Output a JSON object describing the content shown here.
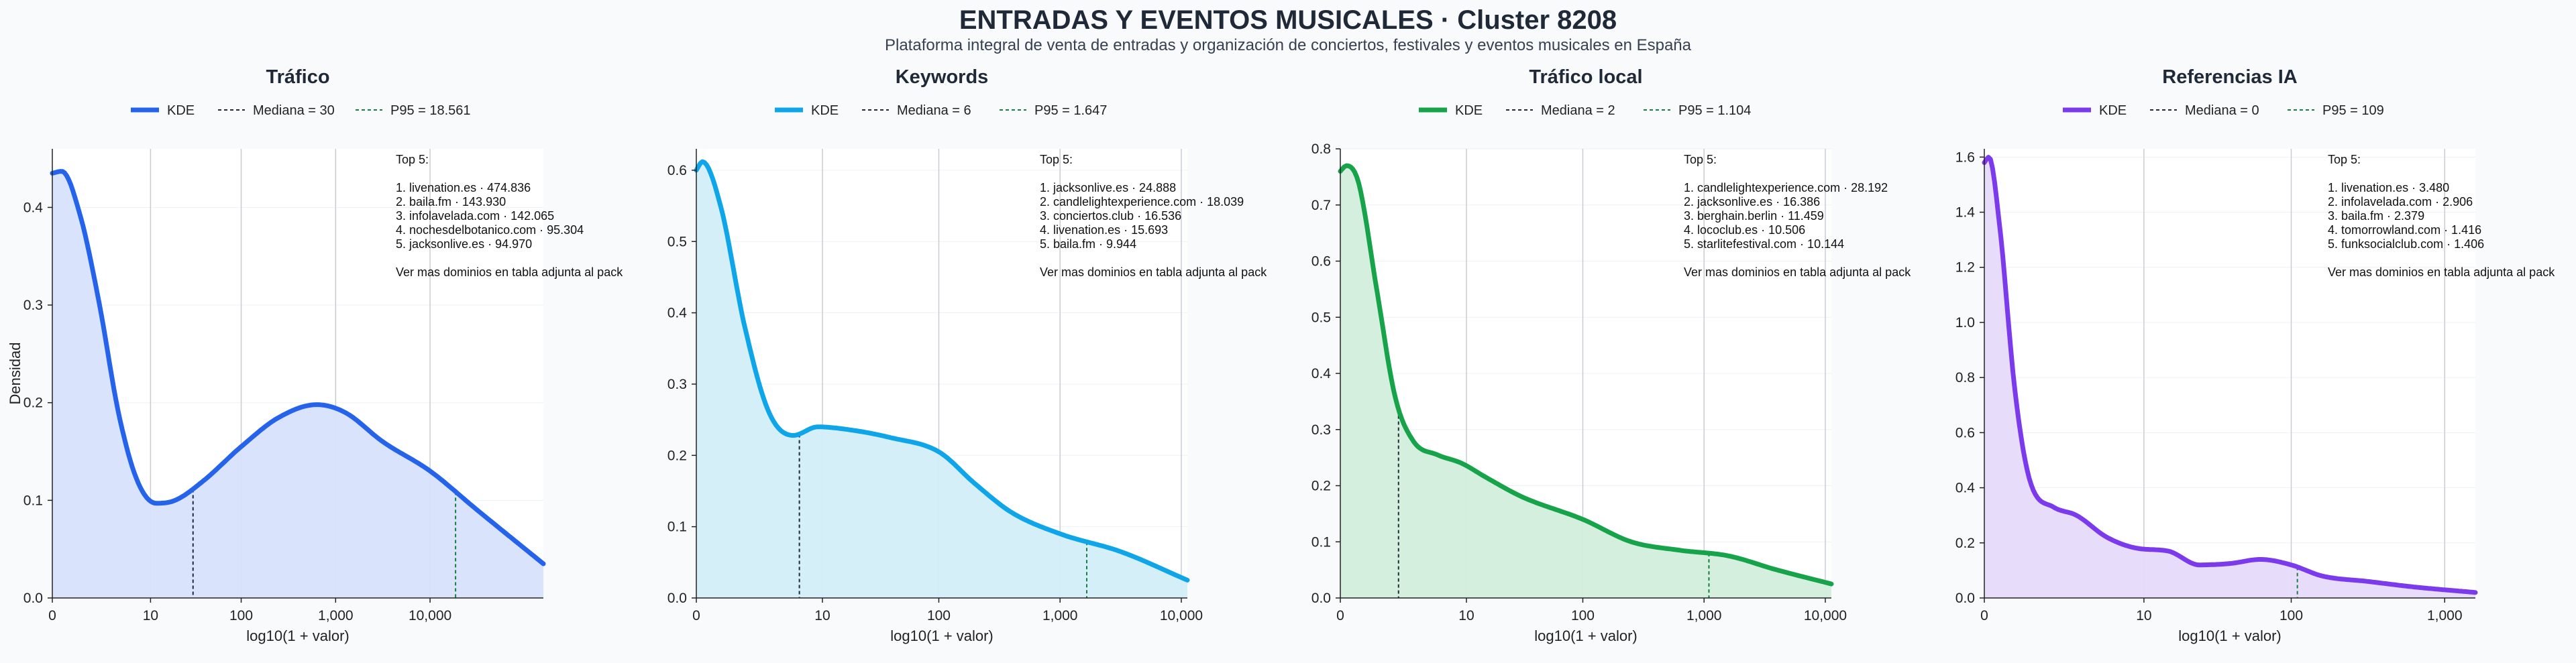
{
  "title": "ENTRADAS Y EVENTOS MUSICALES · Cluster 8208",
  "subtitle": "Plataforma integral de venta de entradas y organización de conciertos, festivales y eventos musicales en España",
  "chart_data": [
    {
      "type": "area",
      "title": "Tráfico",
      "xlabel": "log10(1 + valor)",
      "ylabel": "Densidad",
      "color": "#2563eb",
      "fill": "#d7e2fb",
      "xlim": [
        0,
        5.2
      ],
      "ylim": [
        0,
        0.46
      ],
      "x_ticks": [
        {
          "v": 0,
          "label": "0"
        },
        {
          "v": 1.04,
          "label": "10"
        },
        {
          "v": 2.0,
          "label": "100"
        },
        {
          "v": 3.0,
          "label": "1,000"
        },
        {
          "v": 4.0,
          "label": "10,000"
        }
      ],
      "y_ticks": [
        {
          "v": 0,
          "label": "0.0"
        },
        {
          "v": 0.1,
          "label": "0.1"
        },
        {
          "v": 0.2,
          "label": "0.2"
        },
        {
          "v": 0.3,
          "label": "0.3"
        },
        {
          "v": 0.4,
          "label": "0.4"
        }
      ],
      "x": [
        0,
        0.1,
        0.3,
        0.5,
        0.7,
        0.9,
        1.1,
        1.3,
        1.6,
        2.0,
        2.4,
        2.8,
        3.1,
        3.5,
        4.0,
        4.5,
        5.2
      ],
      "y": [
        0.435,
        0.437,
        0.39,
        0.3,
        0.19,
        0.12,
        0.097,
        0.1,
        0.12,
        0.155,
        0.185,
        0.198,
        0.19,
        0.16,
        0.13,
        0.09,
        0.035
      ],
      "median": {
        "x": 1.49,
        "label": "Mediana = 30"
      },
      "p95": {
        "x": 4.27,
        "label": "P95 = 18.561"
      },
      "series_label": "KDE",
      "top5_title": "Top 5:",
      "top5": [
        "1. livenation.es · 474.836",
        "2. baila.fm · 143.930",
        "3. infolavelada.com · 142.065",
        "4. nochesdelbotanico.com · 95.304",
        "5. jacksonlive.es · 94.970"
      ],
      "top5_note": "Ver mas dominios en tabla adjunta al pack"
    },
    {
      "type": "area",
      "title": "Keywords",
      "xlabel": "log10(1 + valor)",
      "ylabel": "",
      "color": "#0ea5e9",
      "fill": "#d3eef9",
      "xlim": [
        0,
        4.05
      ],
      "ylim": [
        0,
        0.63
      ],
      "x_ticks": [
        {
          "v": 0,
          "label": "0"
        },
        {
          "v": 1.04,
          "label": "10"
        },
        {
          "v": 2.0,
          "label": "100"
        },
        {
          "v": 3.0,
          "label": "1,000"
        },
        {
          "v": 4.0,
          "label": "10,000"
        }
      ],
      "y_ticks": [
        {
          "v": 0,
          "label": "0.0"
        },
        {
          "v": 0.1,
          "label": "0.1"
        },
        {
          "v": 0.2,
          "label": "0.2"
        },
        {
          "v": 0.3,
          "label": "0.3"
        },
        {
          "v": 0.4,
          "label": "0.4"
        },
        {
          "v": 0.5,
          "label": "0.5"
        },
        {
          "v": 0.6,
          "label": "0.6"
        }
      ],
      "x": [
        0,
        0.05,
        0.2,
        0.4,
        0.6,
        0.8,
        1.0,
        1.3,
        1.6,
        2.0,
        2.3,
        2.6,
        3.0,
        3.5,
        4.05
      ],
      "y": [
        0.6,
        0.612,
        0.55,
        0.38,
        0.26,
        0.228,
        0.24,
        0.235,
        0.225,
        0.205,
        0.16,
        0.12,
        0.09,
        0.065,
        0.025
      ],
      "median": {
        "x": 0.85,
        "label": "Mediana = 6"
      },
      "p95": {
        "x": 3.22,
        "label": "P95 = 1.647"
      },
      "series_label": "KDE",
      "top5_title": "Top 5:",
      "top5": [
        "1. jacksonlive.es · 24.888",
        "2. candlelightexperience.com · 18.039",
        "3. conciertos.club · 16.536",
        "4. livenation.es · 15.693",
        "5. baila.fm · 9.944"
      ],
      "top5_note": "Ver mas dominios en tabla adjunta al pack"
    },
    {
      "type": "area",
      "title": "Tráfico local",
      "xlabel": "log10(1 + valor)",
      "ylabel": "",
      "color": "#16a34a",
      "fill": "#d3eedc",
      "xlim": [
        0,
        4.05
      ],
      "ylim": [
        0,
        0.8
      ],
      "x_ticks": [
        {
          "v": 0,
          "label": "0"
        },
        {
          "v": 1.04,
          "label": "10"
        },
        {
          "v": 2.0,
          "label": "100"
        },
        {
          "v": 3.0,
          "label": "1,000"
        },
        {
          "v": 4.0,
          "label": "10,000"
        }
      ],
      "y_ticks": [
        {
          "v": 0,
          "label": "0.0"
        },
        {
          "v": 0.1,
          "label": "0.1"
        },
        {
          "v": 0.2,
          "label": "0.2"
        },
        {
          "v": 0.3,
          "label": "0.3"
        },
        {
          "v": 0.4,
          "label": "0.4"
        },
        {
          "v": 0.5,
          "label": "0.5"
        },
        {
          "v": 0.6,
          "label": "0.6"
        },
        {
          "v": 0.7,
          "label": "0.7"
        },
        {
          "v": 0.8,
          "label": "0.8"
        }
      ],
      "x": [
        0,
        0.05,
        0.15,
        0.3,
        0.45,
        0.6,
        0.8,
        1.0,
        1.2,
        1.5,
        2.0,
        2.4,
        2.8,
        3.2,
        3.6,
        4.05
      ],
      "y": [
        0.76,
        0.77,
        0.74,
        0.55,
        0.36,
        0.28,
        0.255,
        0.24,
        0.215,
        0.18,
        0.14,
        0.1,
        0.085,
        0.075,
        0.05,
        0.025
      ],
      "median": {
        "x": 0.48,
        "label": "Mediana = 2"
      },
      "p95": {
        "x": 3.04,
        "label": "P95 = 1.104"
      },
      "series_label": "KDE",
      "top5_title": "Top 5:",
      "top5": [
        "1. candlelightexperience.com · 28.192",
        "2. jacksonlive.es · 16.386",
        "3. berghain.berlin · 11.459",
        "4. lococlub.es · 10.506",
        "5. starlitefestival.com · 10.144"
      ],
      "top5_note": "Ver mas dominios en tabla adjunta al pack"
    },
    {
      "type": "area",
      "title": "Referencias IA",
      "xlabel": "log10(1 + valor)",
      "ylabel": "",
      "color": "#7c3aed",
      "fill": "#e6dbfa",
      "xlim": [
        0,
        3.2
      ],
      "ylim": [
        0,
        1.63
      ],
      "x_ticks": [
        {
          "v": 0,
          "label": "0"
        },
        {
          "v": 1.04,
          "label": "10"
        },
        {
          "v": 2.0,
          "label": "100"
        },
        {
          "v": 3.0,
          "label": "1,000"
        }
      ],
      "y_ticks": [
        {
          "v": 0,
          "label": "0.0"
        },
        {
          "v": 0.2,
          "label": "0.2"
        },
        {
          "v": 0.4,
          "label": "0.4"
        },
        {
          "v": 0.6,
          "label": "0.6"
        },
        {
          "v": 0.8,
          "label": "0.8"
        },
        {
          "v": 1.0,
          "label": "1.0"
        },
        {
          "v": 1.2,
          "label": "1.2"
        },
        {
          "v": 1.4,
          "label": "1.4"
        },
        {
          "v": 1.6,
          "label": "1.6"
        }
      ],
      "x": [
        0,
        0.03,
        0.1,
        0.2,
        0.3,
        0.45,
        0.6,
        0.8,
        1.0,
        1.2,
        1.4,
        1.6,
        1.8,
        2.0,
        2.2,
        2.5,
        2.8,
        3.2
      ],
      "y": [
        1.58,
        1.6,
        1.35,
        0.75,
        0.42,
        0.33,
        0.3,
        0.22,
        0.18,
        0.17,
        0.12,
        0.125,
        0.14,
        0.12,
        0.08,
        0.06,
        0.04,
        0.02
      ],
      "median": {
        "x": 0,
        "label": "Mediana = 0"
      },
      "p95": {
        "x": 2.04,
        "label": "P95 = 109"
      },
      "series_label": "KDE",
      "top5_title": "Top 5:",
      "top5": [
        "1. livenation.es · 3.480",
        "2. infolavelada.com · 2.906",
        "3. baila.fm · 2.379",
        "4. tomorrowland.com · 1.416",
        "5. funksocialclub.com · 1.406"
      ],
      "top5_note": "Ver mas dominios en tabla adjunta al pack"
    }
  ]
}
